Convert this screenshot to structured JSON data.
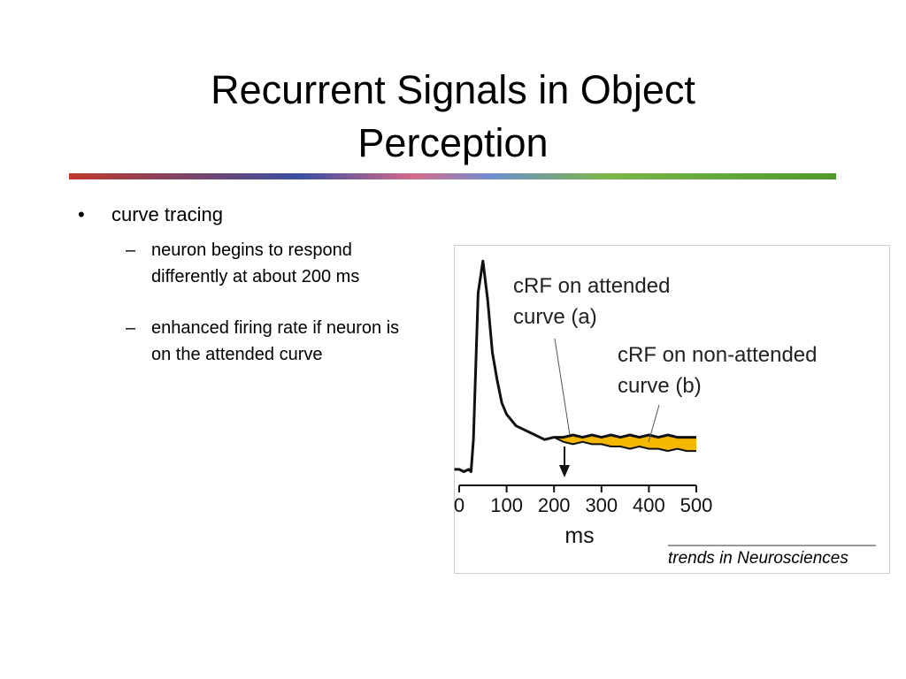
{
  "title": "Recurrent Signals in Object Perception",
  "bullets": [
    {
      "text": "curve tracing",
      "sub": [
        "neuron begins to respond differently at about 200 ms",
        "enhanced firing rate if neuron is on the attended curve"
      ]
    }
  ],
  "chart_data": {
    "type": "line",
    "xlabel": "ms",
    "annotations": [
      [
        "cRF on attended",
        "curve (a)"
      ],
      [
        "cRF on non-attended",
        "curve (b)"
      ]
    ],
    "source": "trends in Neurosciences",
    "xlim": [
      -12,
      500
    ],
    "xticks": [
      0,
      100,
      200,
      300,
      400,
      500
    ],
    "ylim": [
      0,
      100
    ],
    "x": [
      -10,
      0,
      10,
      20,
      25,
      30,
      40,
      50,
      60,
      70,
      80,
      90,
      100,
      120,
      140,
      160,
      180,
      200,
      220,
      240,
      260,
      280,
      300,
      320,
      340,
      360,
      380,
      400,
      420,
      440,
      460,
      480,
      500
    ],
    "series": [
      {
        "name": "cRF on attended curve (a)",
        "color": "#111111",
        "values": [
          7,
          7,
          6,
          7,
          6,
          20,
          84,
          98,
          81,
          58,
          46,
          36,
          31,
          26,
          24,
          22,
          20,
          21,
          21,
          22,
          21,
          22,
          21,
          22,
          21,
          22,
          21,
          22,
          21,
          22,
          21,
          21,
          21
        ]
      },
      {
        "name": "cRF on non-attended curve (b)",
        "color": "#111111",
        "values": [
          7,
          7,
          6,
          7,
          6,
          20,
          84,
          98,
          81,
          58,
          46,
          36,
          31,
          26,
          24,
          22,
          20,
          21,
          19,
          18,
          19,
          18,
          18,
          17,
          17,
          16,
          17,
          16,
          16,
          15,
          16,
          15,
          15
        ]
      }
    ],
    "fill_color": "#f5b800"
  }
}
